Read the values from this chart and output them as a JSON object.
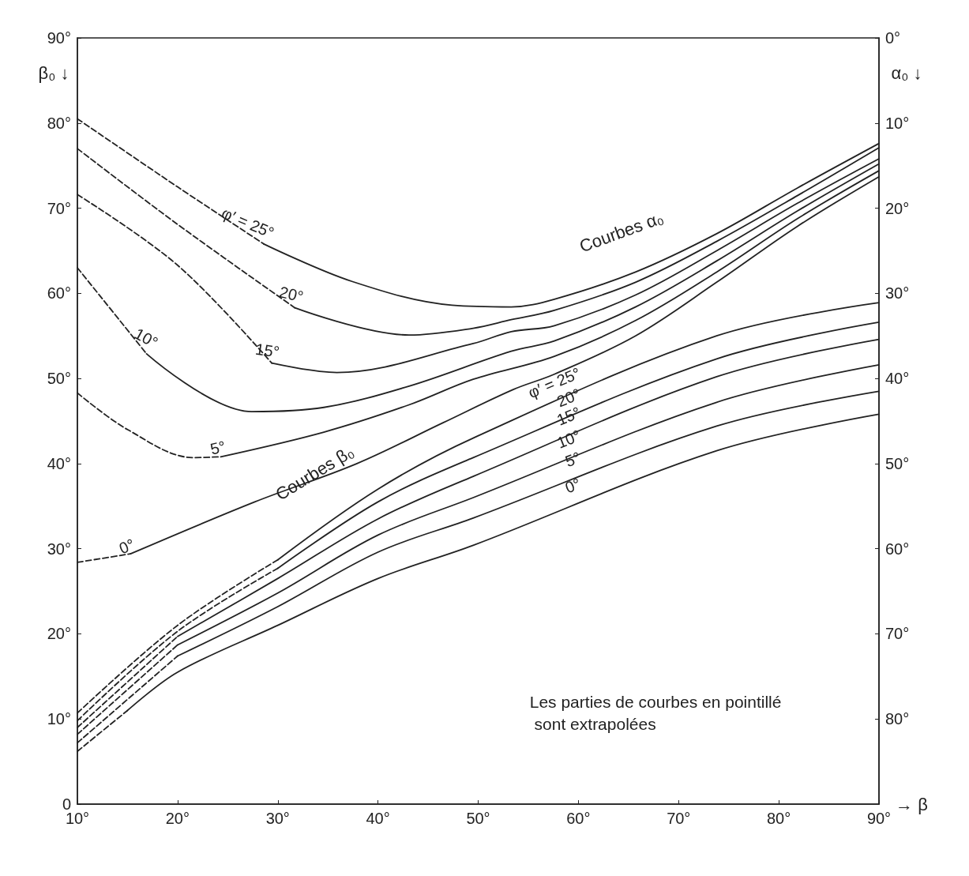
{
  "chart_data": {
    "type": "line",
    "xlabel": "→ β",
    "ylabel": "β₀ ↓",
    "y2label": "α₀ ↓",
    "xlim": [
      10,
      90
    ],
    "xticks": [
      {
        "value": 10,
        "label": "10°"
      },
      {
        "value": 20,
        "label": "20°"
      },
      {
        "value": 30,
        "label": "30°"
      },
      {
        "value": 40,
        "label": "40°"
      },
      {
        "value": 50,
        "label": "50°"
      },
      {
        "value": 60,
        "label": "60°"
      },
      {
        "value": 70,
        "label": "70°"
      },
      {
        "value": 80,
        "label": "80°"
      },
      {
        "value": 90,
        "label": "90°"
      }
    ],
    "ylim": [
      0,
      90
    ],
    "yticks": [
      0,
      {
        "value": 10,
        "label": "10°"
      },
      {
        "value": 20,
        "label": "20°"
      },
      {
        "value": 30,
        "label": "30°"
      },
      {
        "value": 40,
        "label": "40°"
      },
      {
        "value": 50,
        "label": "50°"
      },
      {
        "value": 60,
        "label": "60°"
      },
      {
        "value": 70,
        "label": "70°"
      },
      {
        "value": 80,
        "label": "80°"
      },
      {
        "value": 90,
        "label": "90°"
      }
    ],
    "y2lim": [
      90,
      0
    ],
    "y2ticks": [
      {
        "value": 0,
        "label": "0°"
      },
      {
        "value": 10,
        "label": "10°"
      },
      {
        "value": 20,
        "label": "20°"
      },
      {
        "value": 30,
        "label": "30°"
      },
      {
        "value": 40,
        "label": "40°"
      },
      {
        "value": 50,
        "label": "50°"
      },
      {
        "value": 60,
        "label": "60°"
      },
      {
        "value": 70,
        "label": "70°"
      },
      {
        "value": 80,
        "label": "80°"
      }
    ],
    "marker": "none",
    "series": [
      {
        "axis": "y2",
        "color": "#222222",
        "line_style": "dashed",
        "x": [
          10,
          20,
          28.6
        ],
        "values": [
          9.5,
          17.5,
          24.2
        ]
      },
      {
        "axis": "y2",
        "name": "φ′ = 25°",
        "color": "#222222",
        "line_style": "solid",
        "x": [
          28.6,
          37.4,
          47.4,
          53.3,
          57.6,
          65.7,
          73.8,
          81.9,
          90
        ],
        "values": [
          24.2,
          28.6,
          31.4,
          31.6,
          30.7,
          27.5,
          23,
          17.6,
          12.4
        ]
      },
      {
        "axis": "y2",
        "color": "#222222",
        "line_style": "dashed",
        "x": [
          10,
          20,
          31.7
        ],
        "values": [
          13,
          21.9,
          31.7
        ]
      },
      {
        "axis": "y2",
        "name": "20°",
        "color": "#222222",
        "line_style": "solid",
        "x": [
          31.7,
          43.1,
          49.5,
          53.3,
          57.6,
          65.7,
          73.8,
          81.9,
          90
        ],
        "values": [
          31.7,
          34.9,
          34.1,
          33.1,
          32,
          28.7,
          23.9,
          18.5,
          12.9
        ]
      },
      {
        "axis": "y2",
        "color": "#222222",
        "line_style": "dashed",
        "x": [
          10,
          20,
          29.4
        ],
        "values": [
          18.4,
          26.7,
          38.2
        ]
      },
      {
        "axis": "y2",
        "name": "15°",
        "color": "#222222",
        "line_style": "solid",
        "x": [
          29.4,
          35.9,
          49.5,
          53.3,
          57.6,
          65.7,
          73.8,
          81.9,
          90
        ],
        "values": [
          38.2,
          39.3,
          35.9,
          34.5,
          33.8,
          30.2,
          25,
          19.4,
          14.2
        ]
      },
      {
        "axis": "y2",
        "color": "#222222",
        "line_style": "dashed",
        "x": [
          10,
          16.9
        ],
        "values": [
          27,
          37.1
        ]
      },
      {
        "axis": "y2",
        "name": "10°",
        "color": "#222222",
        "line_style": "solid",
        "x": [
          16.9,
          27.4,
          34.6,
          43.1,
          53.3,
          57.6,
          65.7,
          73.8,
          81.9,
          90
        ],
        "values": [
          37.1,
          43.9,
          43.4,
          40.9,
          36.8,
          35.6,
          31.6,
          26.2,
          20.3,
          14.8
        ]
      },
      {
        "axis": "y2",
        "color": "#222222",
        "line_style": "dashed",
        "x": [
          10,
          15,
          21.6,
          24.3
        ],
        "values": [
          41.7,
          46,
          49.3,
          49.2
        ]
      },
      {
        "axis": "y2",
        "name": "5°",
        "color": "#222222",
        "line_style": "solid",
        "x": [
          24.3,
          34.6,
          43.1,
          49.5,
          57.6,
          65.7,
          73.8,
          81.9,
          90
        ],
        "values": [
          49.2,
          46.3,
          43.1,
          40.1,
          37.4,
          33.2,
          27.5,
          21.2,
          15.6
        ]
      },
      {
        "axis": "y2",
        "color": "#222222",
        "line_style": "dashed",
        "x": [
          10,
          15.3
        ],
        "values": [
          61.6,
          60.6
        ]
      },
      {
        "axis": "y2",
        "name": "0°",
        "color": "#222222",
        "line_style": "solid",
        "x": [
          15.3,
          27.7,
          37.9,
          46.5,
          53.5,
          57.6,
          65.7,
          73.8,
          81.9,
          90
        ],
        "values": [
          60.6,
          54.5,
          50,
          45.2,
          41.3,
          39.5,
          35,
          28.7,
          22.1,
          16.3
        ]
      },
      {
        "color": "#222222",
        "line_style": "dashed",
        "x": [
          10,
          20,
          30
        ],
        "values": [
          10.7,
          21,
          28.7
        ]
      },
      {
        "name": "φ′ = 25°",
        "color": "#222222",
        "line_style": "solid",
        "x": [
          30,
          40,
          49.5,
          73.8,
          90
        ],
        "values": [
          28.7,
          37,
          43,
          55,
          58.9
        ]
      },
      {
        "color": "#222222",
        "line_style": "dashed",
        "x": [
          10,
          20,
          30
        ],
        "values": [
          9.8,
          20.3,
          27.7
        ]
      },
      {
        "name": "20°",
        "color": "#222222",
        "line_style": "solid",
        "x": [
          30,
          40,
          49.5,
          73.8,
          90
        ],
        "values": [
          27.7,
          35.5,
          40.7,
          52.3,
          56.6
        ]
      },
      {
        "color": "#222222",
        "line_style": "dashed",
        "x": [
          10,
          20
        ],
        "values": [
          9,
          19.7
        ]
      },
      {
        "name": "15°",
        "color": "#222222",
        "line_style": "solid",
        "x": [
          20,
          30,
          40,
          49.5,
          73.8,
          90
        ],
        "values": [
          19.7,
          26.5,
          33.5,
          38.5,
          50.2,
          54.6
        ]
      },
      {
        "color": "#222222",
        "line_style": "dashed",
        "x": [
          10,
          20
        ],
        "values": [
          8.2,
          18.7
        ]
      },
      {
        "name": "10°",
        "color": "#222222",
        "line_style": "solid",
        "x": [
          20,
          30,
          40,
          49.5,
          73.8,
          90
        ],
        "values": [
          18.7,
          24.8,
          31.6,
          36,
          47.2,
          51.6
        ]
      },
      {
        "color": "#222222",
        "line_style": "dashed",
        "x": [
          10,
          20
        ],
        "values": [
          7.2,
          17.4
        ]
      },
      {
        "name": "5°",
        "color": "#222222",
        "line_style": "solid",
        "x": [
          20,
          30,
          40,
          49.5,
          73.8,
          90
        ],
        "values": [
          17.4,
          23.2,
          29.6,
          33.6,
          44.4,
          48.5
        ]
      },
      {
        "color": "#222222",
        "line_style": "dashed",
        "x": [
          10,
          15
        ],
        "values": [
          6.2,
          11
        ]
      },
      {
        "name": "0°",
        "color": "#222222",
        "line_style": "solid",
        "x": [
          15,
          20,
          30,
          40,
          49.5,
          73.8,
          90
        ],
        "values": [
          11,
          15.5,
          21,
          26.5,
          30.4,
          41.5,
          45.8
        ]
      }
    ],
    "annotations": [
      "Courbes α₀",
      "Courbes β₀",
      "Les parties de courbes en pointillé sont extrapolées"
    ]
  }
}
